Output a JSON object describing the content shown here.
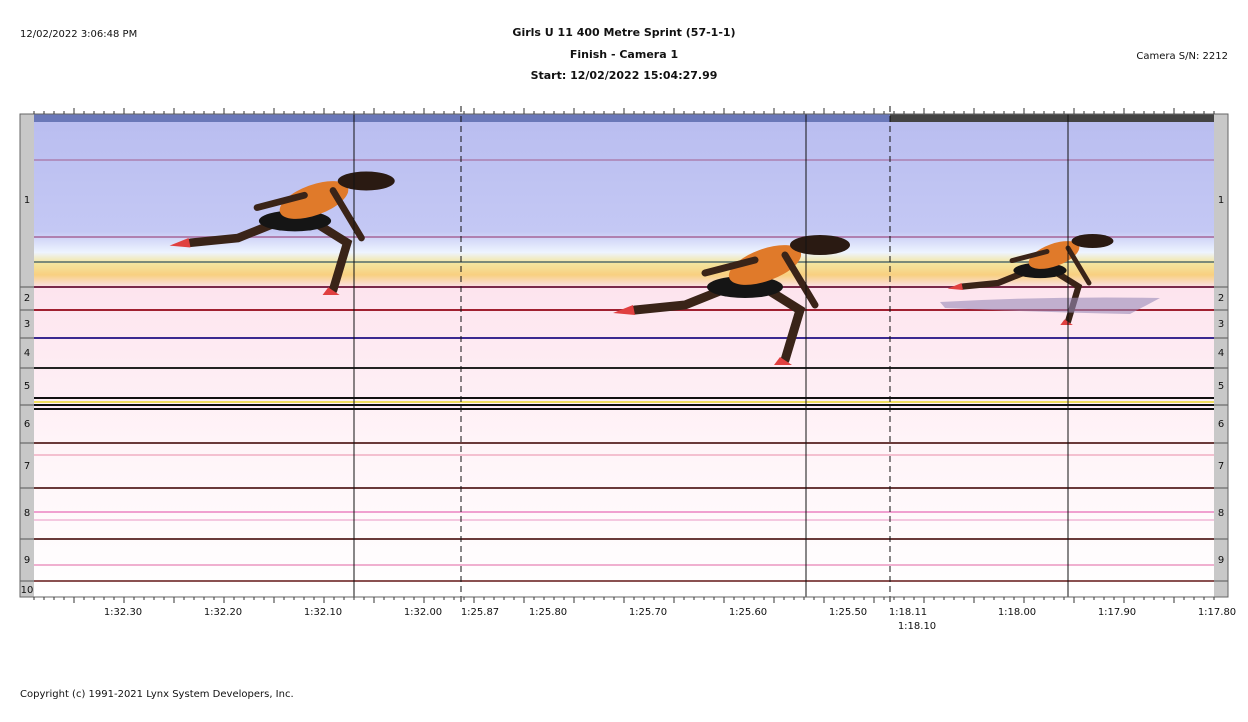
{
  "header": {
    "timestamp": "12/02/2022 3:06:48 PM",
    "title": "Girls U 11 400 Metre Sprint (57-1-1)",
    "subtitle": "Finish - Camera 1",
    "start": "Start: 12/02/2022 15:04:27.99",
    "camera": "Camera S/N: 2212"
  },
  "lanes": [
    "1",
    "2",
    "3",
    "4",
    "5",
    "6",
    "7",
    "8",
    "9",
    "10"
  ],
  "time_labels": [
    "1:32.30",
    "1:32.20",
    "1:32.10",
    "1:32.00",
    "1:25.87",
    "1:25.80",
    "1:25.70",
    "1:25.60",
    "1:25.50",
    "1:18.11",
    "1:18.10",
    "1:18.00",
    "1:17.90",
    "1:17.80"
  ],
  "footer": {
    "copyright": "Copyright (c) 1991-2021 Lynx System Developers, Inc."
  }
}
